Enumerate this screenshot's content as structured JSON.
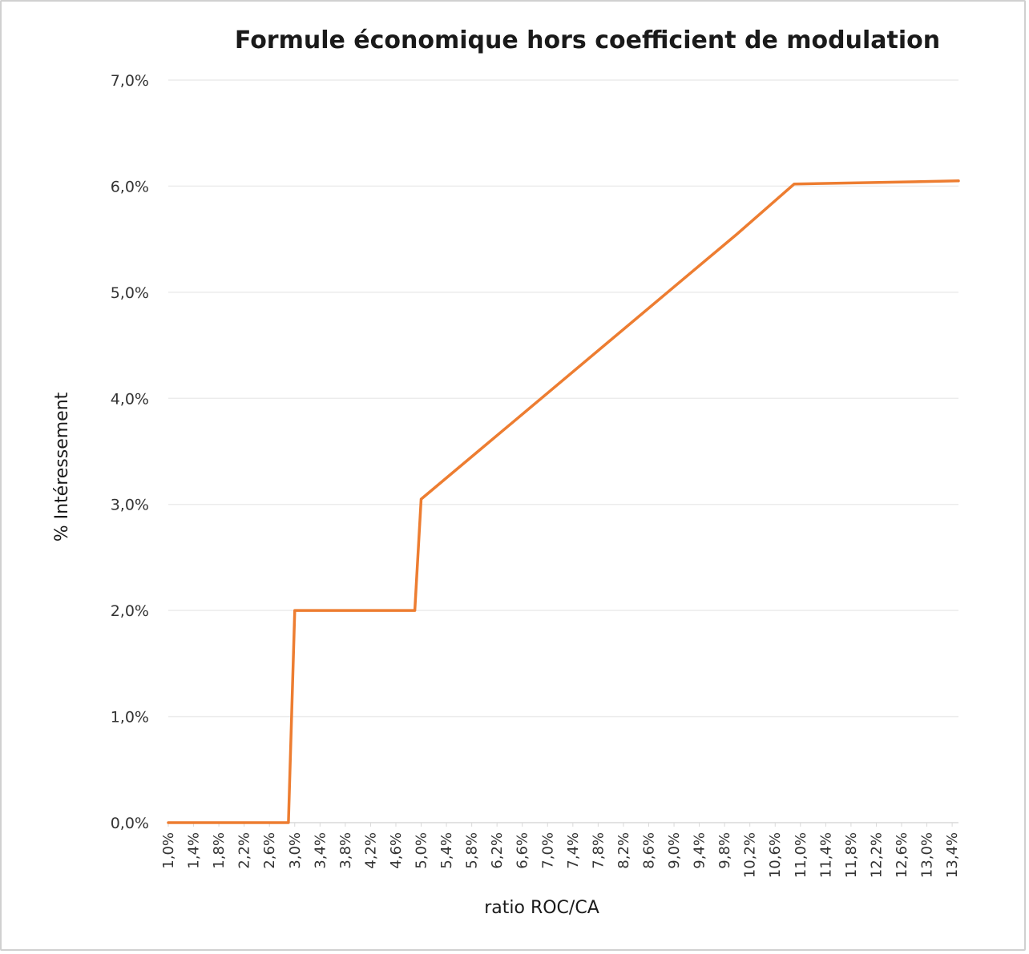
{
  "chart_data": {
    "type": "line",
    "title": "Formule économique hors coefficient de modulation",
    "xlabel": "ratio ROC/CA",
    "ylabel": "% Intéressement",
    "ylim": [
      0,
      7
    ],
    "y_ticks": [
      "0,0%",
      "1,0%",
      "2,0%",
      "3,0%",
      "4,0%",
      "5,0%",
      "6,0%",
      "7,0%"
    ],
    "x_ticks": [
      "1,0%",
      "1,4%",
      "1,8%",
      "2,2%",
      "2,6%",
      "3,0%",
      "3,4%",
      "3,8%",
      "4,2%",
      "4,6%",
      "5,0%",
      "5,4%",
      "5,8%",
      "6,2%",
      "6,6%",
      "7,0%",
      "7,4%",
      "7,8%",
      "8,2%",
      "8,6%",
      "9,0%",
      "9,4%",
      "9,8%",
      "10,2%",
      "10,6%",
      "11,0%",
      "11,4%",
      "11,8%",
      "12,2%",
      "12,6%",
      "13,0%",
      "13,4%"
    ],
    "grid": true,
    "legend": "none",
    "line_color": "#ed7d31",
    "series": [
      {
        "x": [
          1.0,
          2.9,
          3.0,
          4.9,
          5.0,
          6.0,
          7.0,
          8.0,
          9.0,
          10.0,
          10.9,
          13.5
        ],
        "y": [
          0.0,
          0.0,
          2.0,
          2.0,
          3.05,
          3.55,
          4.05,
          4.55,
          5.05,
          5.55,
          6.02,
          6.05
        ]
      }
    ]
  }
}
